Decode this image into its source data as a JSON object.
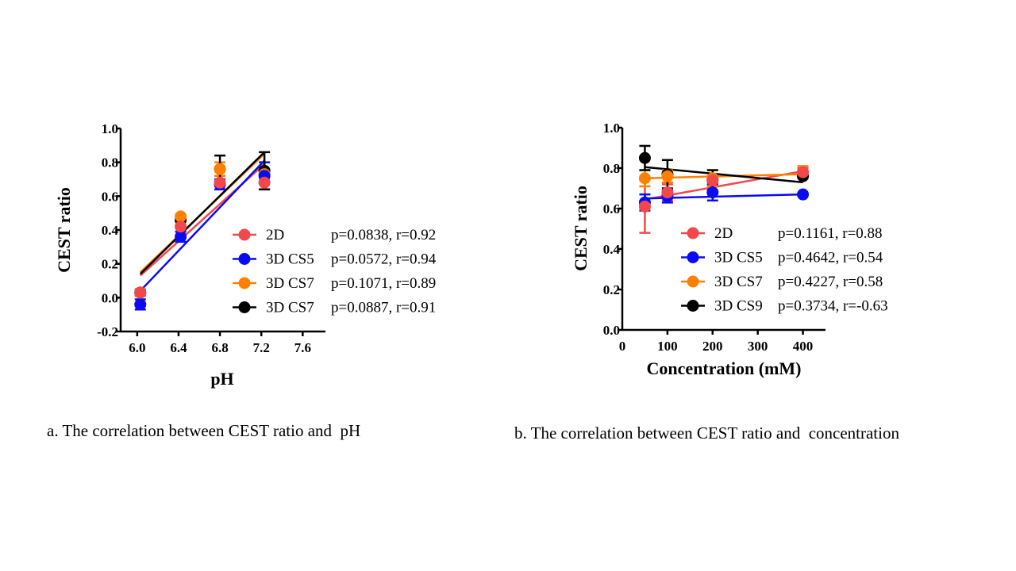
{
  "captions": {
    "a": "a. The correlation between CEST ratio and  pH",
    "b": "b. The correlation between CEST ratio and  concentration"
  },
  "chart_data": [
    {
      "id": "a",
      "type": "scatter",
      "title": "",
      "xlabel": "pH",
      "ylabel": "CEST ratio",
      "xlim": [
        5.84,
        7.82
      ],
      "ylim": [
        -0.2,
        1.0
      ],
      "xticks": [
        "6.0",
        "6.4",
        "6.8",
        "7.2",
        "7.6"
      ],
      "xtick_values": [
        6.0,
        6.4,
        6.8,
        7.2,
        7.6
      ],
      "yticks": [
        "-0.2",
        "0.0",
        "0.2",
        "0.4",
        "0.6",
        "0.8",
        "1.0"
      ],
      "ytick_values": [
        -0.2,
        0.0,
        0.2,
        0.4,
        0.6,
        0.8,
        1.0
      ],
      "grid": false,
      "legend_position": "right",
      "series": [
        {
          "name": "2D",
          "color": "#f2484b",
          "stats": "p=0.0838, r=0.92",
          "x": [
            6.03,
            6.42,
            6.8,
            7.23
          ],
          "values": [
            0.03,
            0.42,
            0.68,
            0.68
          ],
          "err": [
            0.02,
            0.05,
            0.04,
            0.04
          ],
          "fit": [
            [
              6.03,
              0.13
            ],
            [
              7.23,
              0.79
            ]
          ]
        },
        {
          "name": "3D CS5",
          "color": "#0a0af5",
          "stats": "p=0.0572, r=0.94",
          "x": [
            6.03,
            6.42,
            6.8,
            7.23
          ],
          "values": [
            -0.04,
            0.36,
            0.67,
            0.72
          ],
          "err": [
            0.03,
            0.03,
            0.03,
            0.08
          ],
          "fit": [
            [
              6.03,
              0.04
            ],
            [
              7.23,
              0.81
            ]
          ]
        },
        {
          "name": "3D CS7",
          "color": "#ff8000",
          "stats": "p=0.1071, r=0.89",
          "x": [
            6.03,
            6.42,
            6.8,
            7.23
          ],
          "values": [
            0.03,
            0.48,
            0.76,
            0.73
          ],
          "err": [
            0.01,
            0.01,
            0.04,
            0.03
          ],
          "fit": [
            [
              6.03,
              0.15
            ],
            [
              7.23,
              0.85
            ]
          ]
        },
        {
          "name": "3D CS7",
          "color": "#000000",
          "stats": "p=0.0887, r=0.91",
          "x": [
            6.03,
            6.42,
            6.8,
            7.23
          ],
          "values": [
            0.03,
            0.46,
            0.76,
            0.75
          ],
          "err": [
            0.01,
            0.01,
            0.08,
            0.11
          ],
          "fit": [
            [
              6.03,
              0.14
            ],
            [
              7.23,
              0.86
            ]
          ]
        }
      ]
    },
    {
      "id": "b",
      "type": "scatter",
      "title": "",
      "xlabel": "Concentration (mM)",
      "ylabel": "CEST ratio",
      "xlim": [
        0,
        450
      ],
      "ylim": [
        0.0,
        1.0
      ],
      "xticks": [
        "0",
        "100",
        "200",
        "300",
        "400"
      ],
      "xtick_values": [
        0,
        100,
        200,
        300,
        400
      ],
      "yticks": [
        "0.0",
        "0.2",
        "0.4",
        "0.6",
        "0.8",
        "1.0"
      ],
      "ytick_values": [
        0.0,
        0.2,
        0.4,
        0.6,
        0.8,
        1.0
      ],
      "grid": false,
      "legend_position": "right",
      "series": [
        {
          "name": "2D",
          "color": "#f2484b",
          "stats": "p=0.1161, r=0.88",
          "x": [
            50,
            100,
            200,
            400
          ],
          "values": [
            0.61,
            0.68,
            0.74,
            0.78
          ],
          "err": [
            0.13,
            0.04,
            0.02,
            0.02
          ],
          "fit": [
            [
              50,
              0.645
            ],
            [
              400,
              0.785
            ]
          ]
        },
        {
          "name": "3D CS5",
          "color": "#0a0af5",
          "stats": "p=0.4642, r=0.54",
          "x": [
            50,
            100,
            200,
            400
          ],
          "values": [
            0.63,
            0.66,
            0.68,
            0.67
          ],
          "err": [
            0.04,
            0.03,
            0.04,
            0.0
          ],
          "fit": [
            [
              50,
              0.65
            ],
            [
              400,
              0.67
            ]
          ]
        },
        {
          "name": "3D CS7",
          "color": "#ff8000",
          "stats": "p=0.4227, r=0.58",
          "x": [
            50,
            100,
            200,
            400
          ],
          "values": [
            0.75,
            0.76,
            0.75,
            0.78
          ],
          "err": [
            0.04,
            0.03,
            0.04,
            0.03
          ],
          "fit": [
            [
              50,
              0.75
            ],
            [
              400,
              0.77
            ]
          ]
        },
        {
          "name": "3D CS9",
          "color": "#000000",
          "stats": "p=0.3734, r=-0.63",
          "x": [
            50,
            100,
            200,
            400
          ],
          "values": [
            0.85,
            0.77,
            0.74,
            0.76
          ],
          "err": [
            0.06,
            0.07,
            0.05,
            0.0
          ],
          "fit": [
            [
              50,
              0.805
            ],
            [
              400,
              0.73
            ]
          ]
        }
      ]
    }
  ]
}
